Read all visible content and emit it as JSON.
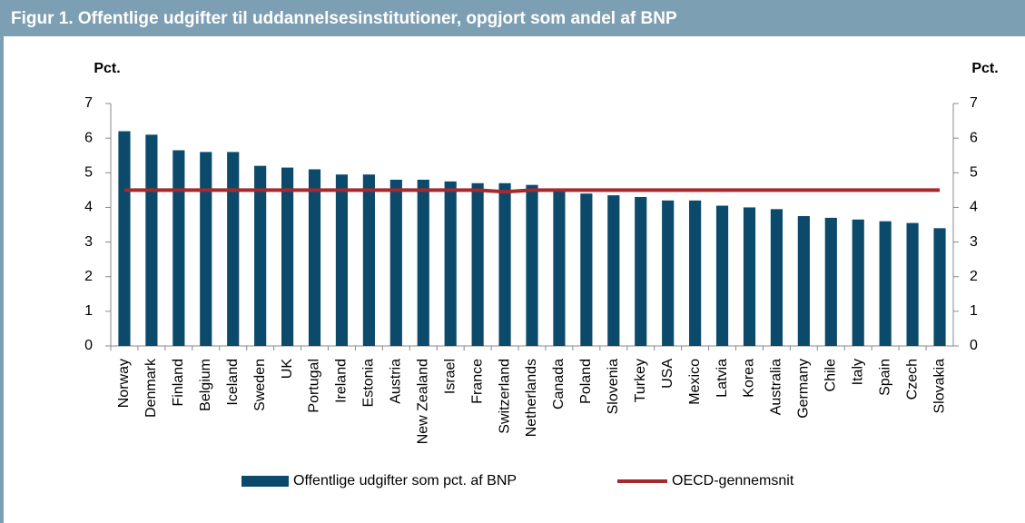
{
  "chart_data": {
    "type": "bar",
    "title": "Figur 1. Offentlige udgifter til uddannelsesinstitutioner, opgjort som andel af BNP",
    "y_label": "Pct.",
    "y2_label": "Pct.",
    "categories": [
      "Norway",
      "Denmark",
      "Finland",
      "Belgium",
      "Iceland",
      "Sweden",
      "UK",
      "Portugal",
      "Ireland",
      "Estonia",
      "Austria",
      "New Zealand",
      "Israel",
      "France",
      "Switzerland",
      "Netherlands",
      "Canada",
      "Poland",
      "Slovenia",
      "Turkey",
      "USA",
      "Mexico",
      "Latvia",
      "Korea",
      "Australia",
      "Germany",
      "Chile",
      "Italy",
      "Spain",
      "Czech",
      "Slovakia"
    ],
    "series": [
      {
        "name": "Offentlige udgifter som pct. af BNP",
        "type": "bar",
        "color": "#0b4a6b",
        "values": [
          6.2,
          6.1,
          5.65,
          5.6,
          5.6,
          5.2,
          5.15,
          5.1,
          4.95,
          4.95,
          4.8,
          4.8,
          4.75,
          4.7,
          4.7,
          4.65,
          4.5,
          4.4,
          4.35,
          4.3,
          4.2,
          4.2,
          4.05,
          4.0,
          3.95,
          3.75,
          3.7,
          3.65,
          3.6,
          3.55,
          3.4
        ]
      },
      {
        "name": "OECD-gennemsnit",
        "type": "line",
        "color": "#a32a2e",
        "values": [
          4.5,
          4.5,
          4.5,
          4.5,
          4.5,
          4.5,
          4.5,
          4.5,
          4.5,
          4.5,
          4.5,
          4.5,
          4.5,
          4.5,
          4.45,
          4.5,
          4.5,
          4.5,
          4.5,
          4.5,
          4.5,
          4.5,
          4.5,
          4.5,
          4.5,
          4.5,
          4.5,
          4.5,
          4.5,
          4.5,
          4.5
        ]
      }
    ],
    "ylim": [
      0,
      7
    ],
    "yticks": [
      0,
      1,
      2,
      3,
      4,
      5,
      6,
      7
    ],
    "y2lim": [
      0,
      7
    ],
    "y2ticks": [
      0,
      1,
      2,
      3,
      4,
      5,
      6,
      7
    ]
  }
}
